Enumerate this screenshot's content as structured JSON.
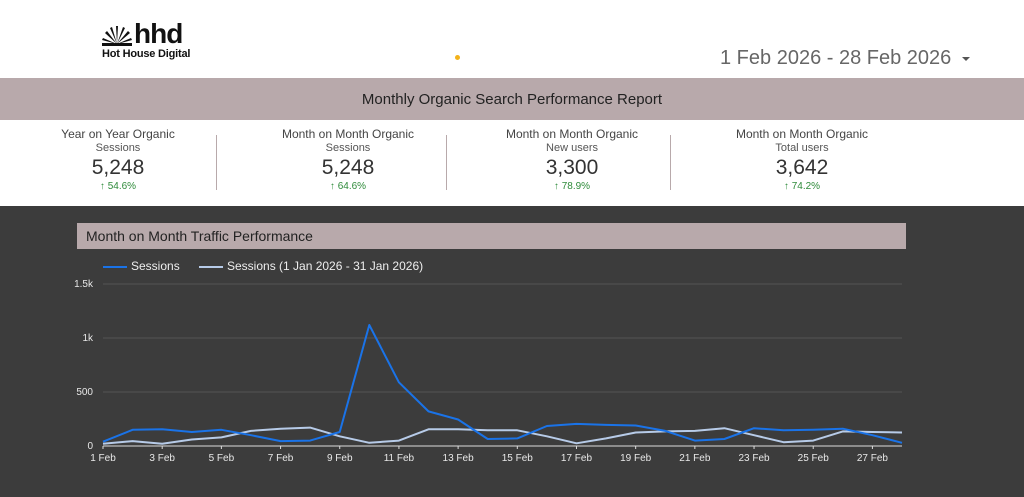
{
  "brand": {
    "logo_text": "hhd",
    "logo_subtext": "Hot House Digital"
  },
  "date_range": {
    "label": "1 Feb 2026 - 28 Feb 2026"
  },
  "report_title": "Monthly Organic Search Performance Report",
  "kpis": [
    {
      "line1": "Year on Year Organic",
      "line2": "Sessions",
      "value": "5,248",
      "delta": "54.6%"
    },
    {
      "line1": "Month on Month Organic",
      "line2": "Sessions",
      "value": "5,248",
      "delta": "64.6%"
    },
    {
      "line1": "Month on Month Organic",
      "line2": "New users",
      "value": "3,300",
      "delta": "78.9%"
    },
    {
      "line1": "Month on Month Organic",
      "line2": "Total users",
      "value": "3,642",
      "delta": "74.2%"
    }
  ],
  "colors": {
    "accent_band": "#b8a9ab",
    "positive": "#2e8b3a",
    "series_current": "#1a73e8",
    "series_previous": "#b7cbe8",
    "dark_bg": "#3c3c3c"
  },
  "chart_data": {
    "type": "line",
    "title": "Month on Month Traffic Performance",
    "x": [
      "1 Feb",
      "2 Feb",
      "3 Feb",
      "4 Feb",
      "5 Feb",
      "6 Feb",
      "7 Feb",
      "8 Feb",
      "9 Feb",
      "10 Feb",
      "11 Feb",
      "12 Feb",
      "13 Feb",
      "14 Feb",
      "15 Feb",
      "16 Feb",
      "17 Feb",
      "18 Feb",
      "19 Feb",
      "20 Feb",
      "21 Feb",
      "22 Feb",
      "23 Feb",
      "24 Feb",
      "25 Feb",
      "26 Feb",
      "27 Feb",
      "28 Feb"
    ],
    "x_tick_labels": [
      "1 Feb",
      "3 Feb",
      "5 Feb",
      "7 Feb",
      "9 Feb",
      "11 Feb",
      "13 Feb",
      "15 Feb",
      "17 Feb",
      "19 Feb",
      "21 Feb",
      "23 Feb",
      "25 Feb",
      "27 Feb"
    ],
    "y_tick_labels": [
      "0",
      "500",
      "1k",
      "1.5k"
    ],
    "y_ticks": [
      0,
      500,
      1000,
      1500
    ],
    "ylim": [
      0,
      1500
    ],
    "series": [
      {
        "name": "Sessions",
        "values": [
          40,
          150,
          155,
          130,
          150,
          100,
          45,
          50,
          130,
          1120,
          590,
          320,
          245,
          65,
          70,
          185,
          205,
          195,
          190,
          140,
          50,
          65,
          165,
          145,
          150,
          160,
          100,
          30
        ]
      },
      {
        "name": "Sessions (1 Jan 2026 - 31 Jan 2026)",
        "values": [
          20,
          45,
          20,
          60,
          80,
          140,
          160,
          170,
          90,
          30,
          50,
          155,
          155,
          145,
          145,
          90,
          25,
          70,
          125,
          135,
          140,
          165,
          100,
          35,
          50,
          135,
          130,
          125
        ]
      }
    ],
    "legend_position": "top-left",
    "grid": "horizontal"
  }
}
